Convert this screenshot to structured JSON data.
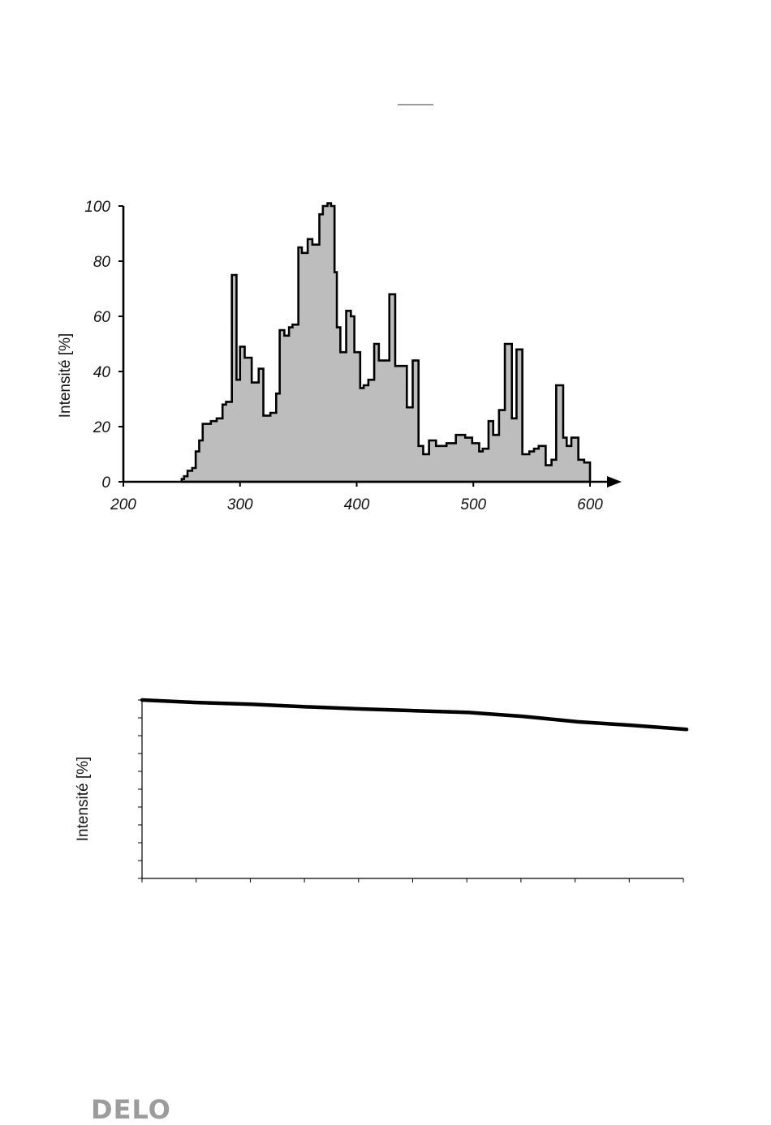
{
  "logo": "DELO",
  "chart_data": [
    {
      "type": "area",
      "title": "",
      "xlabel": "",
      "ylabel": "Intensité [%]",
      "xlim": [
        200,
        600
      ],
      "ylim": [
        0,
        100
      ],
      "xticks": [
        "200",
        "300",
        "400",
        "500",
        "600"
      ],
      "yticks": [
        "0",
        "20",
        "40",
        "60",
        "80",
        "100"
      ],
      "fill_color": "#bdbdbd",
      "line_color": "#000000",
      "grid": false,
      "series": [
        {
          "x": [
            250,
            252,
            255,
            259,
            262,
            265,
            268,
            272,
            275,
            280,
            285,
            288,
            293,
            297,
            300,
            304,
            310,
            316,
            320,
            326,
            331,
            334,
            338,
            342,
            345,
            350,
            353,
            358,
            362,
            368,
            371,
            375,
            378,
            381,
            383,
            386,
            391,
            395,
            398,
            403,
            406,
            410,
            415,
            419,
            423,
            428,
            433,
            438,
            443,
            448,
            453,
            457,
            462,
            468,
            477,
            485,
            493,
            499,
            505,
            508,
            513,
            517,
            522,
            527,
            533,
            537,
            542,
            548,
            552,
            556,
            562,
            567,
            571,
            577,
            580,
            584,
            590,
            595,
            600
          ],
          "y": [
            1,
            2,
            4,
            5,
            11,
            15,
            21,
            21,
            22,
            23,
            28,
            29,
            75,
            37,
            49,
            45,
            36,
            41,
            24,
            25,
            32,
            55,
            53,
            56,
            57,
            85,
            83,
            88,
            86,
            97,
            100,
            101,
            100,
            76,
            56,
            47,
            62,
            60,
            47,
            34,
            35,
            37,
            50,
            44,
            44,
            68,
            42,
            42,
            27,
            44,
            13,
            10,
            15,
            13,
            14,
            17,
            16,
            14,
            11,
            12,
            22,
            17,
            26,
            50,
            23,
            48,
            10,
            11,
            12,
            13,
            6,
            8,
            35,
            16,
            13,
            16,
            8,
            7,
            0
          ]
        }
      ]
    },
    {
      "type": "line",
      "title": "",
      "xlabel": "",
      "ylabel": "Intensité [%]",
      "grid": false,
      "series": [
        {
          "x": [
            0,
            1,
            2,
            3,
            4,
            5,
            6,
            7,
            8,
            9,
            10
          ],
          "y": [
            100,
            98.6,
            97.6,
            96.2,
            95.0,
            94.0,
            93.0,
            90.8,
            87.8,
            85.8,
            83.5
          ]
        }
      ]
    }
  ]
}
